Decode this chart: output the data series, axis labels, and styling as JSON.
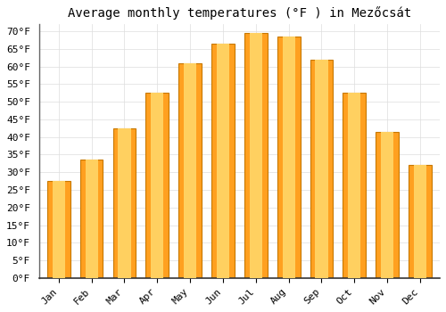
{
  "title": "Average monthly temperatures (°F ) in Mezőcsát",
  "months": [
    "Jan",
    "Feb",
    "Mar",
    "Apr",
    "May",
    "Jun",
    "Jul",
    "Aug",
    "Sep",
    "Oct",
    "Nov",
    "Dec"
  ],
  "values": [
    27.5,
    33.5,
    42.5,
    52.5,
    61.0,
    66.5,
    69.5,
    68.5,
    62.0,
    52.5,
    41.5,
    32.0
  ],
  "bar_color_main": "#FFA020",
  "bar_color_light": "#FFD060",
  "bar_edge_color": "#C87800",
  "ylim": [
    0,
    72
  ],
  "yticks": [
    0,
    5,
    10,
    15,
    20,
    25,
    30,
    35,
    40,
    45,
    50,
    55,
    60,
    65,
    70
  ],
  "background_color": "#FFFFFF",
  "grid_color": "#DDDDDD",
  "title_fontsize": 10,
  "tick_fontsize": 8,
  "font_family": "monospace"
}
